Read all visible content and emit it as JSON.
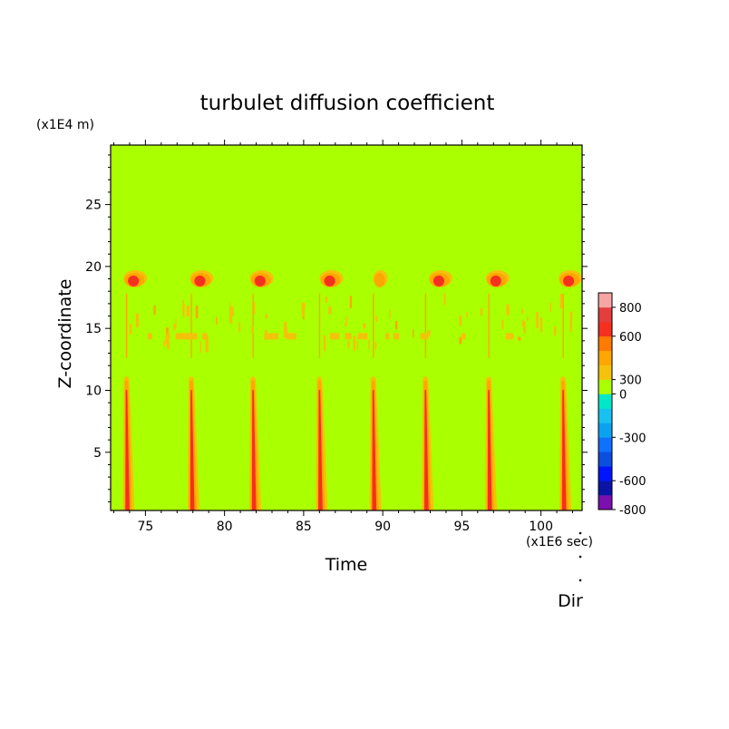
{
  "chart_data": {
    "type": "heatmap",
    "title": "turbulet diffusion coefficient",
    "xlabel": "Time",
    "ylabel": "Z-coordinate",
    "x_unit": "(x1E6 sec)",
    "y_unit": "(x1E4 m)",
    "xlim": [
      72.8,
      102.6
    ],
    "ylim": [
      0.3,
      29.8
    ],
    "x_ticks": [
      75,
      80,
      85,
      90,
      95,
      100
    ],
    "y_ticks": [
      5,
      10,
      15,
      20,
      25
    ],
    "colorbar": {
      "levels": [
        -800,
        -700,
        -600,
        -500,
        -400,
        -300,
        -200,
        -100,
        0,
        300,
        400,
        500,
        600,
        700,
        800
      ],
      "colors": [
        "#7b0fb0",
        "#0b14a5",
        "#0015ff",
        "#0b4ee0",
        "#1070ff",
        "#0ba3f0",
        "#18c2f0",
        "#00e8c8",
        "#aaff00",
        "#f4c20a",
        "#ffa600",
        "#ff7a00",
        "#f5301f",
        "#e53d3d",
        "#f7a4a4"
      ],
      "tick_labels": [
        "-800",
        "-600",
        "-300",
        "0",
        "300",
        "600",
        "800"
      ]
    },
    "background_value": 0,
    "event_times": [
      73.8,
      77.9,
      81.8,
      86.0,
      89.4,
      92.7,
      96.7,
      101.4
    ],
    "upper_blob_times": [
      74.3,
      78.5,
      82.3,
      86.7,
      89.8,
      93.6,
      97.2,
      101.8
    ],
    "bands": {
      "lower_z": [
        0.3,
        11.2
      ],
      "upper_z": [
        17.8,
        20.0
      ],
      "middle_z": [
        13.5,
        17.5
      ]
    },
    "extra_label": "Dir"
  }
}
